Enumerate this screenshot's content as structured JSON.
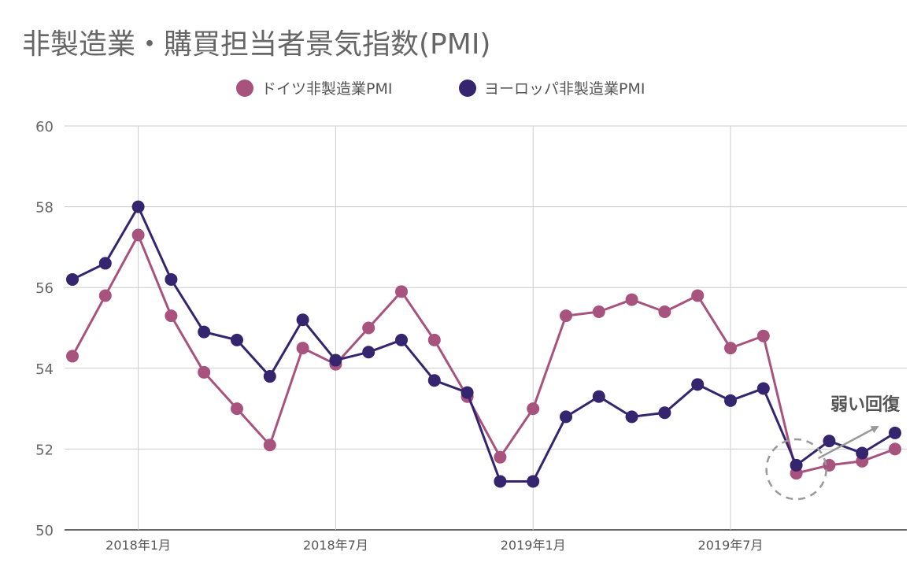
{
  "chart_data": {
    "type": "line",
    "title": "非製造業・購買担当者景気指数(PMI)",
    "xlabel": "",
    "ylabel": "",
    "ylim": [
      50,
      60
    ],
    "yticks": [
      50,
      52,
      54,
      56,
      58,
      60
    ],
    "grid": true,
    "legend_position": "top",
    "x": [
      "2017年11月",
      "2017年12月",
      "2018年1月",
      "2018年2月",
      "2018年3月",
      "2018年4月",
      "2018年5月",
      "2018年6月",
      "2018年7月",
      "2018年8月",
      "2018年9月",
      "2018年10月",
      "2018年11月",
      "2018年12月",
      "2019年1月",
      "2019年2月",
      "2019年3月",
      "2019年4月",
      "2019年5月",
      "2019年6月",
      "2019年7月",
      "2019年8月",
      "2019年9月",
      "2019年10月",
      "2019年11月",
      "2019年12月"
    ],
    "xticks": [
      {
        "index": 2,
        "label": "2018年1月"
      },
      {
        "index": 8,
        "label": "2018年7月"
      },
      {
        "index": 14,
        "label": "2019年1月"
      },
      {
        "index": 20,
        "label": "2019年7月"
      }
    ],
    "series": [
      {
        "name": "ドイツ非製造業PMI",
        "color": "#a8527e",
        "values": [
          54.3,
          55.8,
          57.3,
          55.3,
          53.9,
          53.0,
          52.1,
          54.5,
          54.1,
          55.0,
          55.9,
          54.7,
          53.3,
          51.8,
          53.0,
          55.3,
          55.4,
          55.7,
          55.4,
          55.8,
          54.5,
          54.8,
          51.4,
          51.6,
          51.7,
          52.0
        ]
      },
      {
        "name": "ヨーロッパ非製造業PMI",
        "color": "#35246e",
        "values": [
          56.2,
          56.6,
          58.0,
          56.2,
          54.9,
          54.7,
          53.8,
          55.2,
          54.2,
          54.4,
          54.7,
          53.7,
          53.4,
          51.2,
          51.2,
          52.8,
          53.3,
          52.8,
          52.9,
          53.6,
          53.2,
          53.5,
          51.6,
          52.2,
          51.9,
          52.4
        ]
      }
    ],
    "annotation": {
      "text": "弱い回復",
      "circle_index": 22,
      "arrow_from_index": 22,
      "arrow_to_index": 25
    }
  }
}
